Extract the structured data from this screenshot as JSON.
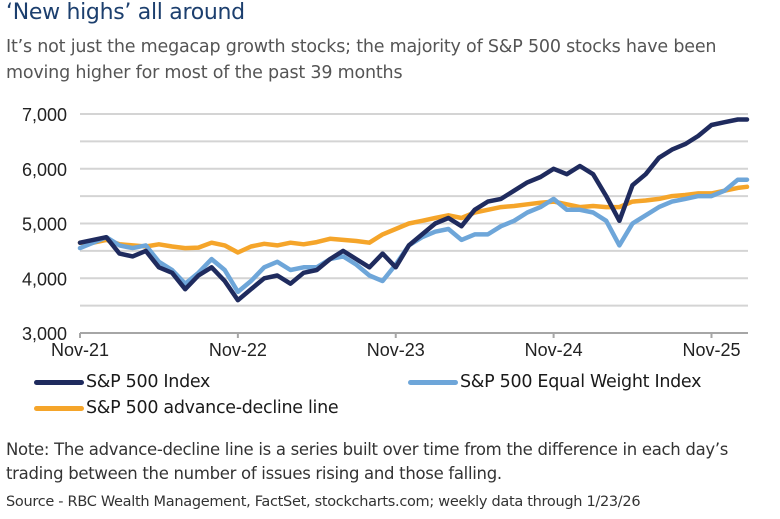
{
  "header": {
    "title": "‘New highs’ all around",
    "subtitle": "It’s not just the megacap growth stocks; the majority of S&P 500 stocks have been moving higher for most of the past 39 months"
  },
  "legend": [
    {
      "label": "S&P 500 Index",
      "color": "#1f2b5e"
    },
    {
      "label": "S&P 500 Equal Weight Index",
      "color": "#6ea6d9"
    },
    {
      "label": "S&P 500 advance-decline line",
      "color": "#f5a52a"
    }
  ],
  "footer": {
    "note": "Note: The advance-decline line is a series built over time from the difference in each day’s trading between the number of issues rising and those falling.",
    "source": "Source - RBC Wealth Management, FactSet, stockcharts.com; weekly data through 1/23/26"
  },
  "chart_data": {
    "type": "line",
    "title": "‘New highs’ all around",
    "xlabel": "",
    "ylabel": "",
    "x_unit": "months since Nov-21",
    "xlim": [
      0,
      50.7
    ],
    "ylim": [
      3000,
      7000
    ],
    "yticks": [
      3000,
      4000,
      5000,
      6000,
      7000
    ],
    "ytick_labels": [
      "3,000",
      "4,000",
      "5,000",
      "6,000",
      "7,000"
    ],
    "gridlines": [
      3500,
      4000,
      4500,
      5000,
      5500,
      6000,
      6500,
      7000
    ],
    "grid": true,
    "xticks": [
      0,
      12,
      24,
      36,
      48
    ],
    "xtick_labels": [
      "Nov-21",
      "Nov-22",
      "Nov-23",
      "Nov-24",
      "Nov-25"
    ],
    "legend_position": "bottom",
    "x": [
      0,
      1,
      2,
      3,
      4,
      5,
      6,
      7,
      8,
      9,
      10,
      11,
      12,
      13,
      14,
      15,
      16,
      17,
      18,
      19,
      20,
      21,
      22,
      23,
      24,
      25,
      26,
      27,
      28,
      29,
      30,
      31,
      32,
      33,
      34,
      35,
      36,
      37,
      38,
      39,
      40,
      41,
      42,
      43,
      44,
      45,
      46,
      47,
      48,
      49,
      50,
      50.7
    ],
    "series": [
      {
        "name": "S&P 500 Index",
        "color": "#1f2b5e",
        "values": [
          4650,
          4700,
          4750,
          4450,
          4400,
          4500,
          4200,
          4100,
          3800,
          4050,
          4200,
          3950,
          3600,
          3800,
          4000,
          4050,
          3900,
          4100,
          4150,
          4350,
          4500,
          4350,
          4200,
          4450,
          4200,
          4600,
          4800,
          5000,
          5100,
          4950,
          5250,
          5400,
          5450,
          5600,
          5750,
          5850,
          6000,
          5900,
          6050,
          5900,
          5500,
          5050,
          5700,
          5900,
          6200,
          6350,
          6450,
          6600,
          6800,
          6850,
          6900,
          6900
        ]
      },
      {
        "name": "S&P 500 Equal Weight Index",
        "color": "#6ea6d9",
        "values": [
          4550,
          4650,
          4750,
          4600,
          4550,
          4600,
          4300,
          4150,
          3900,
          4100,
          4350,
          4150,
          3750,
          3950,
          4200,
          4300,
          4150,
          4200,
          4200,
          4350,
          4400,
          4250,
          4050,
          3950,
          4250,
          4600,
          4750,
          4850,
          4900,
          4700,
          4800,
          4800,
          4950,
          5050,
          5200,
          5300,
          5450,
          5250,
          5250,
          5200,
          5050,
          4600,
          5000,
          5150,
          5300,
          5400,
          5450,
          5500,
          5500,
          5600,
          5800,
          5800
        ]
      },
      {
        "name": "S&P 500 advance-decline line",
        "color": "#f5a52a",
        "values": [
          4650,
          4650,
          4700,
          4620,
          4600,
          4580,
          4620,
          4580,
          4550,
          4560,
          4650,
          4600,
          4470,
          4580,
          4630,
          4600,
          4650,
          4620,
          4660,
          4720,
          4700,
          4680,
          4650,
          4800,
          4900,
          5000,
          5050,
          5100,
          5150,
          5100,
          5200,
          5250,
          5300,
          5320,
          5350,
          5380,
          5400,
          5350,
          5300,
          5320,
          5300,
          5300,
          5400,
          5420,
          5450,
          5500,
          5520,
          5550,
          5550,
          5600,
          5650,
          5670
        ]
      }
    ]
  }
}
